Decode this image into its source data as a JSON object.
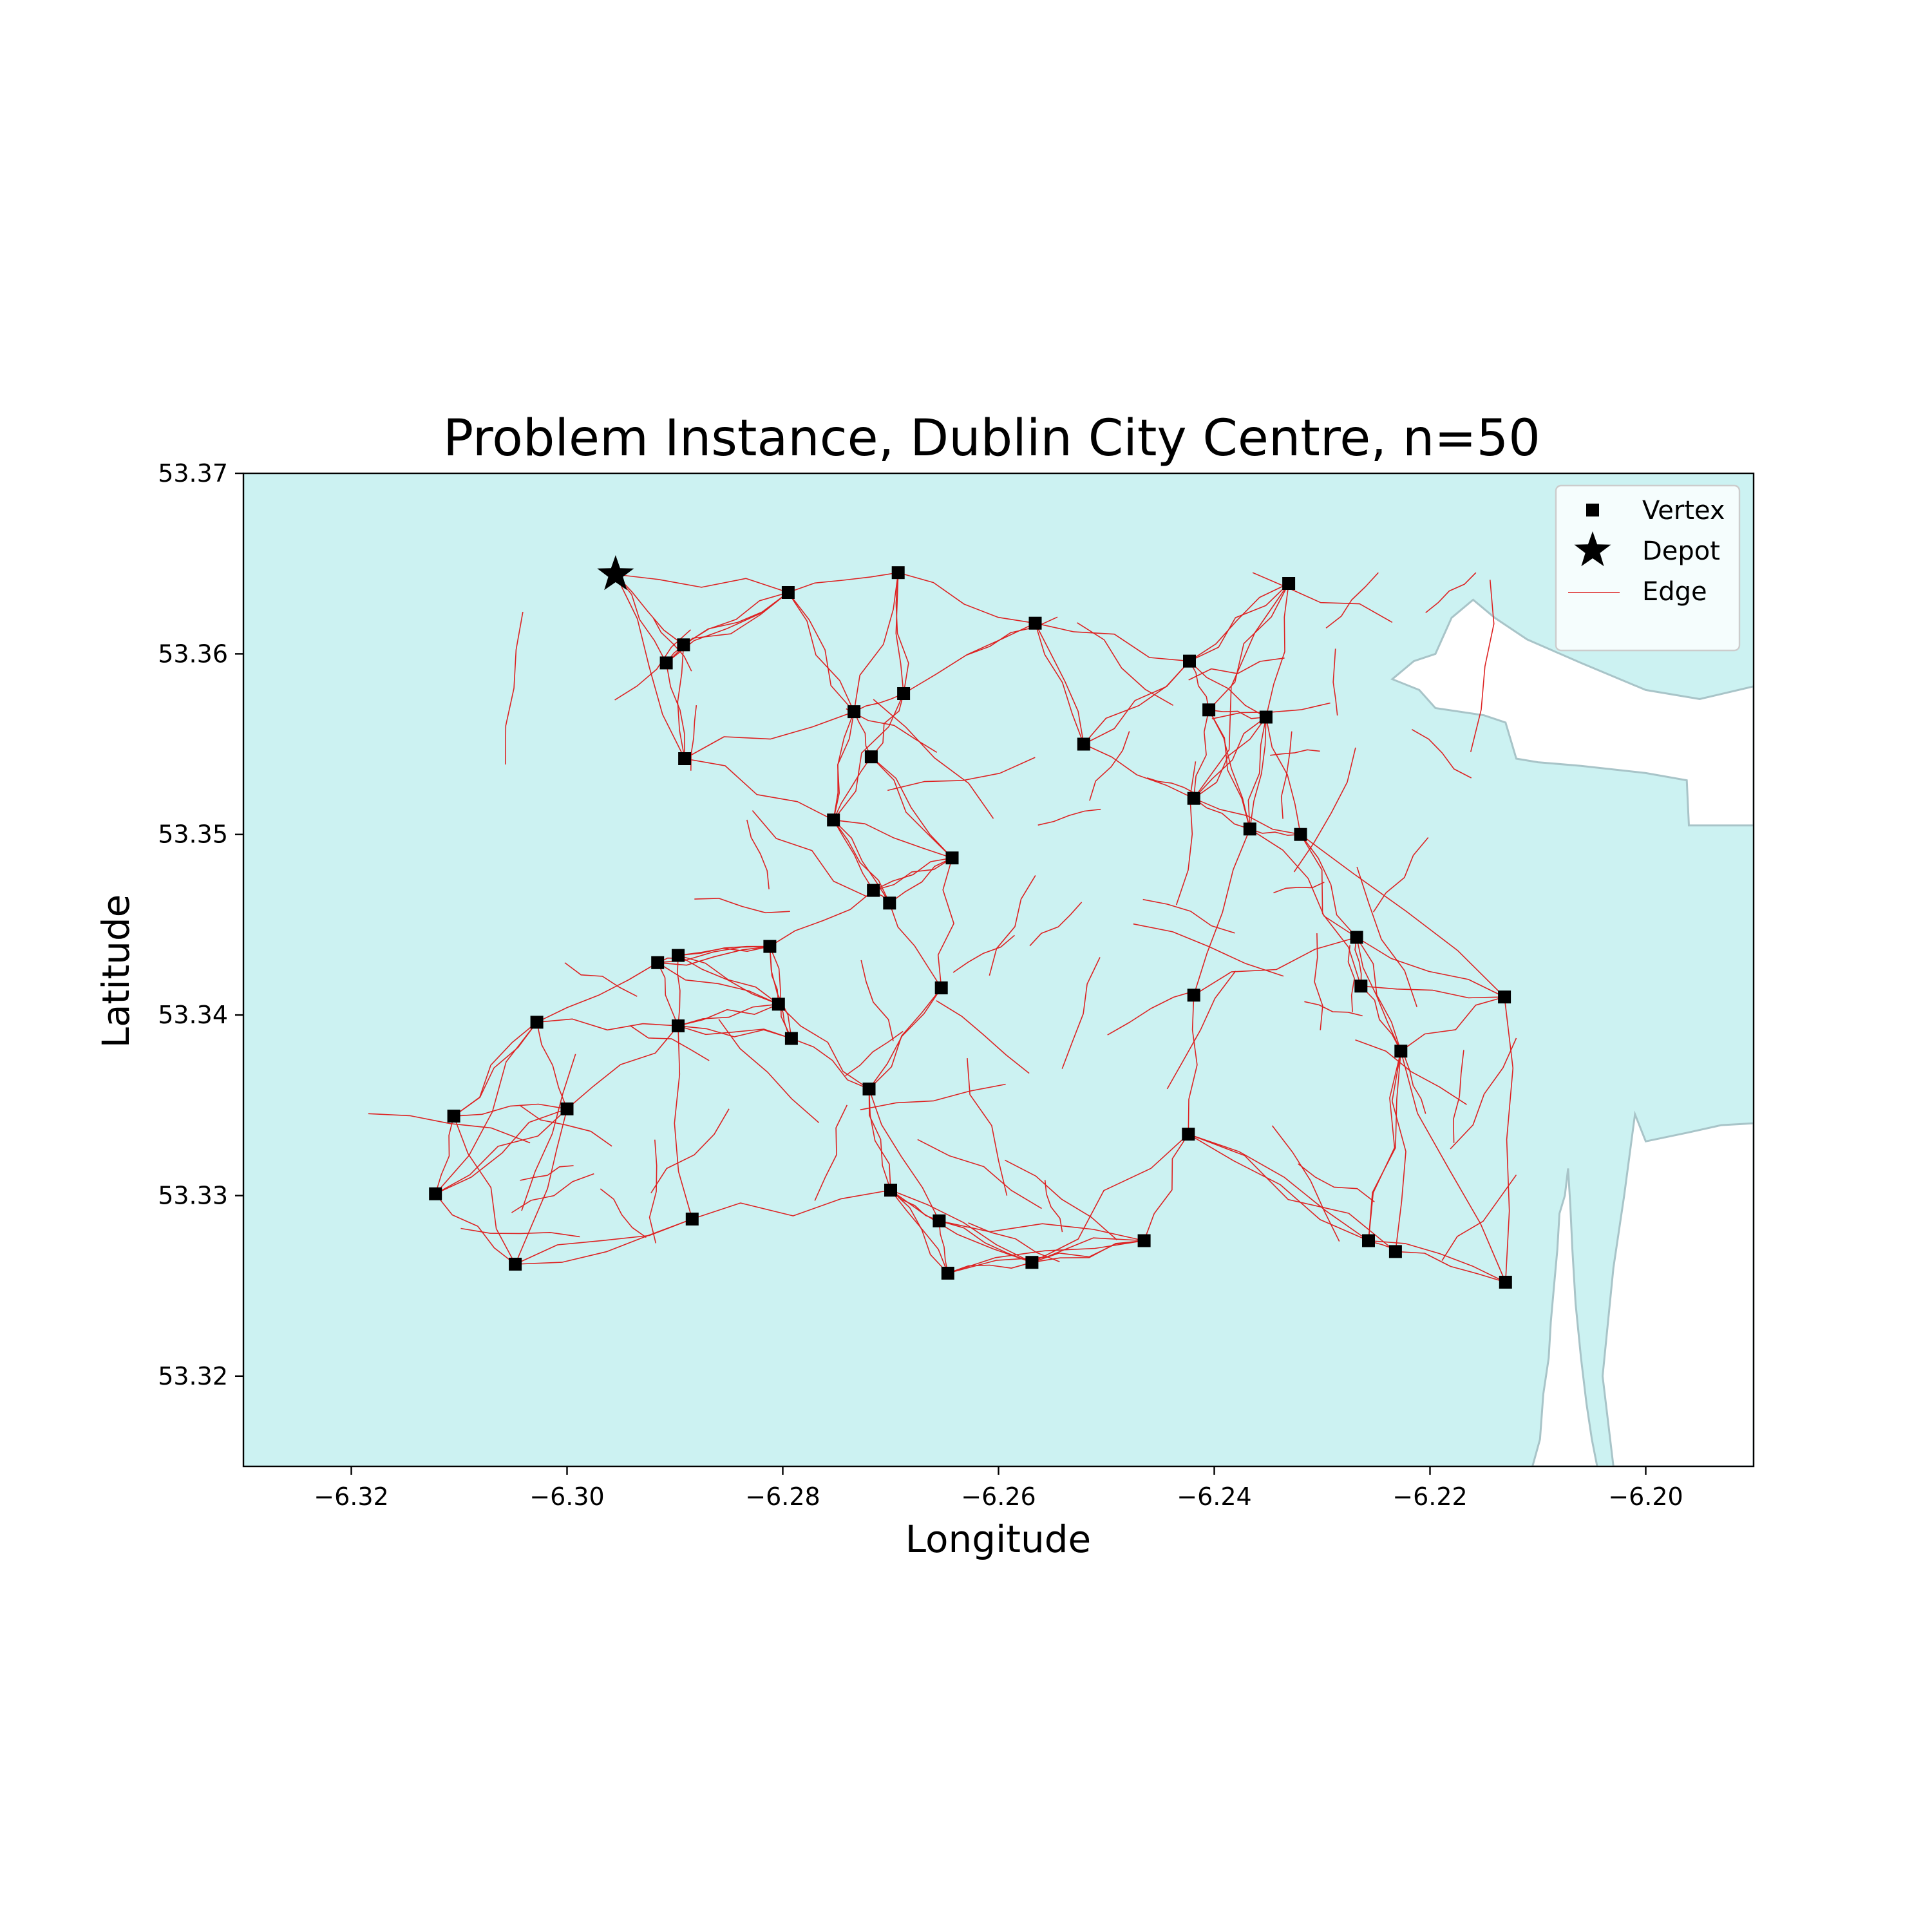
{
  "chart_data": {
    "type": "scatter",
    "title": "Problem Instance, Dublin City Centre, n=50",
    "xlabel": "Longitude",
    "ylabel": "Latitude",
    "xlim": [
      -6.33,
      -6.19
    ],
    "ylim": [
      53.315,
      53.37
    ],
    "xticks": [
      -6.32,
      -6.3,
      -6.28,
      -6.26,
      -6.24,
      -6.22,
      -6.2
    ],
    "xtick_labels": [
      "−6.32",
      "−6.30",
      "−6.28",
      "−6.26",
      "−6.24",
      "−6.22",
      "−6.20"
    ],
    "yticks": [
      53.32,
      53.33,
      53.34,
      53.35,
      53.36,
      53.37
    ],
    "ytick_labels": [
      "53.32",
      "53.33",
      "53.34",
      "53.35",
      "53.36",
      "53.37"
    ],
    "grid": false,
    "legend": {
      "placement": "top-right",
      "entries": [
        {
          "label": "Vertex",
          "marker": "square"
        },
        {
          "label": "Depot",
          "marker": "star"
        },
        {
          "label": "Edge",
          "marker": "line"
        }
      ]
    },
    "colors": {
      "water": "#ccf2f2",
      "land": "#ffffff",
      "coast": "#a8c4c8",
      "edge": "#dd2222",
      "vertex": "#000000"
    },
    "depot": {
      "x": -6.2955,
      "y": 53.3644
    },
    "vertices": [
      {
        "x": -6.2795,
        "y": 53.3634
      },
      {
        "x": -6.2693,
        "y": 53.3645
      },
      {
        "x": -6.2331,
        "y": 53.3639
      },
      {
        "x": -6.2566,
        "y": 53.3617
      },
      {
        "x": -6.2892,
        "y": 53.3605
      },
      {
        "x": -6.2908,
        "y": 53.3595
      },
      {
        "x": -6.2423,
        "y": 53.3596
      },
      {
        "x": -6.2688,
        "y": 53.3578
      },
      {
        "x": -6.2734,
        "y": 53.3568
      },
      {
        "x": -6.2405,
        "y": 53.3569
      },
      {
        "x": -6.2352,
        "y": 53.3565
      },
      {
        "x": -6.2521,
        "y": 53.355
      },
      {
        "x": -6.2718,
        "y": 53.3543
      },
      {
        "x": -6.2891,
        "y": 53.3542
      },
      {
        "x": -6.2419,
        "y": 53.352
      },
      {
        "x": -6.2753,
        "y": 53.3508
      },
      {
        "x": -6.2367,
        "y": 53.3503
      },
      {
        "x": -6.232,
        "y": 53.35
      },
      {
        "x": -6.2643,
        "y": 53.3487
      },
      {
        "x": -6.2716,
        "y": 53.3469
      },
      {
        "x": -6.2701,
        "y": 53.3462
      },
      {
        "x": -6.2268,
        "y": 53.3443
      },
      {
        "x": -6.2812,
        "y": 53.3438
      },
      {
        "x": -6.2897,
        "y": 53.3433
      },
      {
        "x": -6.2916,
        "y": 53.3429
      },
      {
        "x": -6.2264,
        "y": 53.3416
      },
      {
        "x": -6.2653,
        "y": 53.3415
      },
      {
        "x": -6.2131,
        "y": 53.341
      },
      {
        "x": -6.2419,
        "y": 53.3411
      },
      {
        "x": -6.2804,
        "y": 53.3406
      },
      {
        "x": -6.3028,
        "y": 53.3396
      },
      {
        "x": -6.2897,
        "y": 53.3394
      },
      {
        "x": -6.2792,
        "y": 53.3387
      },
      {
        "x": -6.2227,
        "y": 53.338
      },
      {
        "x": -6.272,
        "y": 53.3359
      },
      {
        "x": -6.3,
        "y": 53.3348
      },
      {
        "x": -6.3105,
        "y": 53.3344
      },
      {
        "x": -6.2424,
        "y": 53.3334
      },
      {
        "x": -6.27,
        "y": 53.3303
      },
      {
        "x": -6.3122,
        "y": 53.3301
      },
      {
        "x": -6.2884,
        "y": 53.3287
      },
      {
        "x": -6.2655,
        "y": 53.3286
      },
      {
        "x": -6.2465,
        "y": 53.3275
      },
      {
        "x": -6.2257,
        "y": 53.3275
      },
      {
        "x": -6.2232,
        "y": 53.3269
      },
      {
        "x": -6.3048,
        "y": 53.3262
      },
      {
        "x": -6.2569,
        "y": 53.3263
      },
      {
        "x": -6.2647,
        "y": 53.3257
      },
      {
        "x": -6.213,
        "y": 53.3252
      }
    ],
    "land_polygons": [
      [
        [
          -6.2072,
          53.3315
        ],
        [
          -6.2075,
          53.33
        ],
        [
          -6.208,
          53.329
        ],
        [
          -6.2082,
          53.327
        ],
        [
          -6.2085,
          53.325
        ],
        [
          -6.2088,
          53.323
        ],
        [
          -6.209,
          53.321
        ],
        [
          -6.2095,
          53.319
        ],
        [
          -6.2098,
          53.3165
        ],
        [
          -6.2105,
          53.315
        ],
        [
          -6.2045,
          53.315
        ],
        [
          -6.205,
          53.3165
        ],
        [
          -6.2055,
          53.3185
        ],
        [
          -6.206,
          53.321
        ],
        [
          -6.2065,
          53.324
        ],
        [
          -6.2068,
          53.327
        ],
        [
          -6.207,
          53.3295
        ]
      ],
      [
        [
          -6.2195,
          53.36
        ],
        [
          -6.218,
          53.362
        ],
        [
          -6.216,
          53.363
        ],
        [
          -6.214,
          53.362
        ],
        [
          -6.211,
          53.3608
        ],
        [
          -6.206,
          53.3595
        ],
        [
          -6.2,
          53.358
        ],
        [
          -6.195,
          53.3575
        ],
        [
          -6.19,
          53.3582
        ],
        [
          -6.19,
          53.3505
        ],
        [
          -6.196,
          53.3505
        ],
        [
          -6.1962,
          53.353
        ],
        [
          -6.2,
          53.3534
        ],
        [
          -6.206,
          53.3538
        ],
        [
          -6.21,
          53.354
        ],
        [
          -6.212,
          53.3542
        ],
        [
          -6.213,
          53.3562
        ],
        [
          -6.215,
          53.3566
        ],
        [
          -6.2195,
          53.357
        ],
        [
          -6.221,
          53.358
        ],
        [
          -6.2235,
          53.3586
        ],
        [
          -6.2215,
          53.3596
        ]
      ],
      [
        [
          -6.201,
          53.3345
        ],
        [
          -6.2,
          53.333
        ],
        [
          -6.196,
          53.3335
        ],
        [
          -6.193,
          53.3339
        ],
        [
          -6.19,
          53.334
        ],
        [
          -6.19,
          53.315
        ],
        [
          -6.203,
          53.315
        ],
        [
          -6.204,
          53.32
        ],
        [
          -6.203,
          53.326
        ],
        [
          -6.202,
          53.33
        ]
      ]
    ]
  }
}
